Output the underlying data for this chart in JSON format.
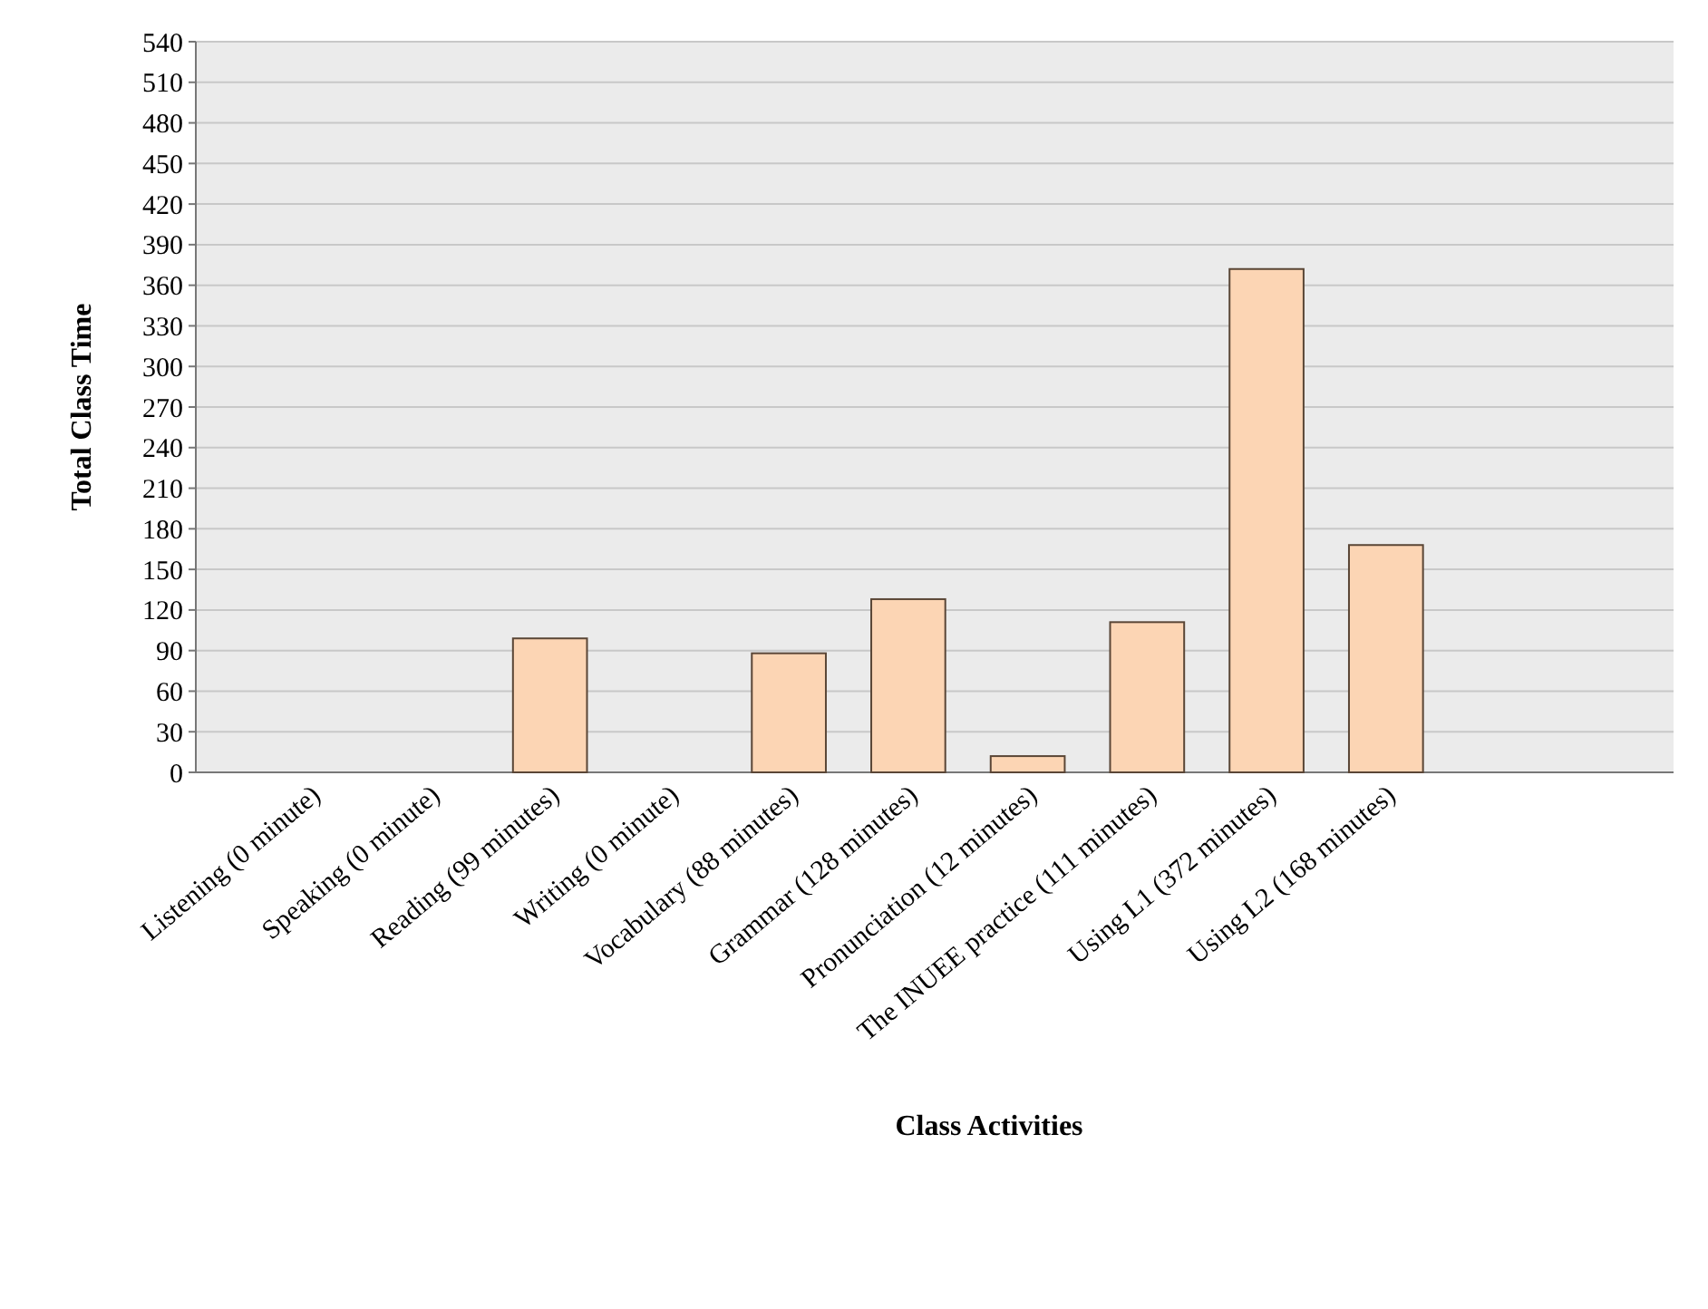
{
  "chart_data": {
    "type": "bar",
    "xlabel": "Class Activities",
    "ylabel": "Total Class Time",
    "categories": [
      "Listening (0 minute)",
      "Speaking (0 minute)",
      "Reading (99 minutes)",
      "Writing (0 minute)",
      "Vocabulary (88 minutes)",
      "Grammar (128 minutes)",
      "Pronunciation (12 minutes)",
      "The INUEE practice (111 minutes)",
      "Using L1 (372 minutes)",
      "Using L2 (168 minutes)"
    ],
    "values": [
      0,
      0,
      99,
      0,
      88,
      128,
      12,
      111,
      372,
      168
    ],
    "color": "#fcd5b4",
    "ylim": [
      0,
      540
    ],
    "yticks": [
      0,
      30,
      60,
      90,
      120,
      150,
      180,
      210,
      240,
      270,
      300,
      330,
      360,
      390,
      420,
      450,
      480,
      510,
      540
    ],
    "grid": "y"
  }
}
